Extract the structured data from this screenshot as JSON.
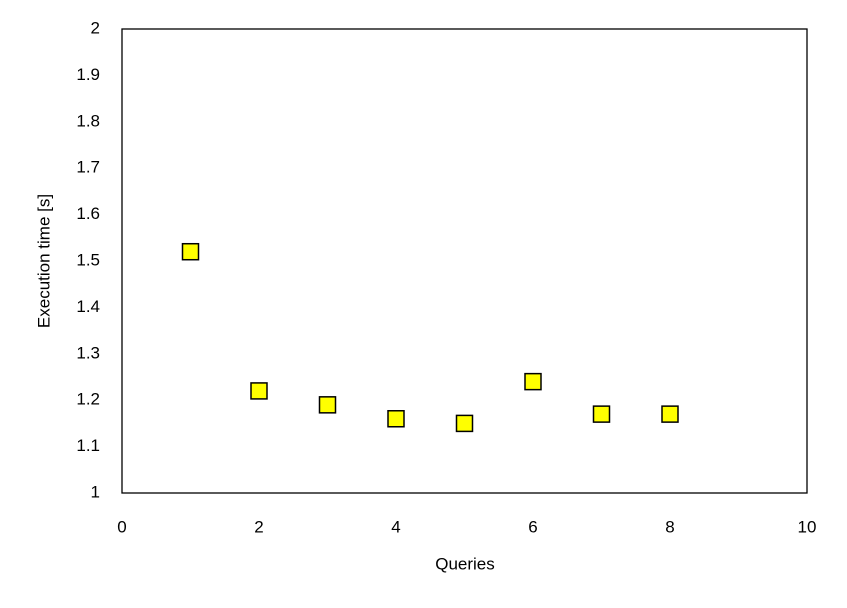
{
  "chart_data": {
    "type": "scatter",
    "xlabel": "Queries",
    "ylabel": "Execution time [s]",
    "x": [
      1,
      2,
      3,
      4,
      5,
      6,
      7,
      8
    ],
    "series": [
      {
        "color": "#ffff00",
        "values": [
          1.52,
          1.22,
          1.19,
          1.16,
          1.15,
          1.24,
          1.17,
          1.17
        ]
      }
    ],
    "xlim": [
      0,
      10
    ],
    "xticks": [
      0,
      2,
      4,
      6,
      8,
      10
    ],
    "ylim": [
      1,
      2
    ],
    "yticks": [
      1,
      1.1,
      1.2,
      1.3,
      1.4,
      1.5,
      1.6,
      1.7,
      1.8,
      1.9,
      2
    ],
    "grid": false
  }
}
